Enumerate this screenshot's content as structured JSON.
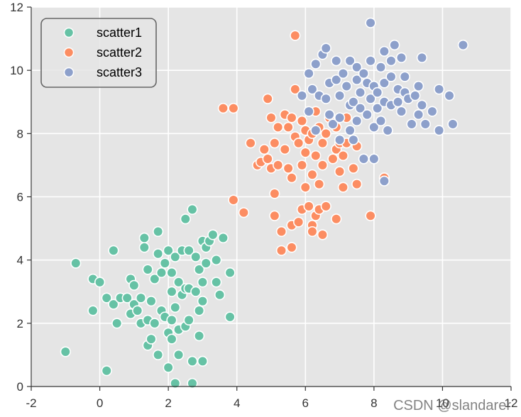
{
  "chart_data": {
    "type": "scatter",
    "title": "",
    "xlabel": "",
    "ylabel": "",
    "xlim": [
      -2,
      12
    ],
    "ylim": [
      0,
      12
    ],
    "xticks": [
      -2,
      0,
      2,
      4,
      6,
      8,
      10,
      12
    ],
    "yticks": [
      0,
      2,
      4,
      6,
      8,
      10,
      12
    ],
    "grid": true,
    "legend_position": "top-left",
    "series": [
      {
        "name": "scatter1",
        "color": "#66c2a5",
        "points": [
          [
            -1.0,
            1.1
          ],
          [
            0.2,
            0.5
          ],
          [
            -0.7,
            3.9
          ],
          [
            -0.2,
            3.4
          ],
          [
            0.4,
            4.3
          ],
          [
            -0.2,
            2.4
          ],
          [
            0.0,
            3.3
          ],
          [
            0.2,
            2.8
          ],
          [
            0.4,
            2.6
          ],
          [
            0.5,
            2.0
          ],
          [
            0.6,
            2.8
          ],
          [
            0.8,
            2.8
          ],
          [
            0.9,
            3.4
          ],
          [
            0.9,
            2.3
          ],
          [
            1.0,
            3.2
          ],
          [
            1.0,
            2.6
          ],
          [
            1.1,
            2.4
          ],
          [
            1.2,
            2.8
          ],
          [
            1.2,
            2.0
          ],
          [
            1.3,
            4.4
          ],
          [
            1.3,
            4.7
          ],
          [
            1.4,
            3.7
          ],
          [
            1.4,
            2.1
          ],
          [
            1.4,
            1.3
          ],
          [
            1.5,
            1.5
          ],
          [
            1.5,
            2.7
          ],
          [
            1.6,
            3.4
          ],
          [
            1.6,
            2.0
          ],
          [
            1.7,
            4.9
          ],
          [
            1.7,
            1.0
          ],
          [
            1.7,
            4.2
          ],
          [
            1.8,
            3.6
          ],
          [
            1.8,
            2.4
          ],
          [
            1.9,
            2.2
          ],
          [
            1.9,
            3.9
          ],
          [
            2.0,
            4.3
          ],
          [
            2.0,
            1.7
          ],
          [
            2.0,
            0.6
          ],
          [
            2.1,
            1.5
          ],
          [
            2.1,
            2.1
          ],
          [
            2.1,
            3.6
          ],
          [
            2.1,
            3.0
          ],
          [
            2.2,
            4.1
          ],
          [
            2.2,
            2.5
          ],
          [
            2.2,
            0.1
          ],
          [
            2.3,
            3.3
          ],
          [
            2.3,
            1.8
          ],
          [
            2.3,
            1.0
          ],
          [
            2.4,
            2.9
          ],
          [
            2.4,
            4.3
          ],
          [
            2.5,
            3.1
          ],
          [
            2.5,
            5.3
          ],
          [
            2.5,
            1.9
          ],
          [
            2.6,
            4.3
          ],
          [
            2.6,
            3.1
          ],
          [
            2.6,
            2.1
          ],
          [
            2.7,
            5.6
          ],
          [
            2.7,
            0.8
          ],
          [
            2.7,
            0.1
          ],
          [
            2.8,
            3.0
          ],
          [
            2.8,
            4.1
          ],
          [
            2.9,
            2.4
          ],
          [
            2.9,
            3.7
          ],
          [
            2.9,
            1.6
          ],
          [
            3.0,
            3.3
          ],
          [
            3.0,
            2.7
          ],
          [
            3.0,
            4.6
          ],
          [
            3.0,
            0.8
          ],
          [
            3.1,
            3.9
          ],
          [
            3.1,
            4.4
          ],
          [
            3.2,
            4.6
          ],
          [
            3.3,
            4.8
          ],
          [
            3.4,
            4.0
          ],
          [
            3.4,
            3.3
          ],
          [
            3.5,
            2.9
          ],
          [
            3.6,
            4.7
          ],
          [
            3.8,
            3.6
          ],
          [
            3.8,
            2.2
          ]
        ]
      },
      {
        "name": "scatter2",
        "color": "#fc8d62",
        "points": [
          [
            3.6,
            8.8
          ],
          [
            3.9,
            8.8
          ],
          [
            3.9,
            5.9
          ],
          [
            4.2,
            5.5
          ],
          [
            4.4,
            7.7
          ],
          [
            4.6,
            7.0
          ],
          [
            4.7,
            7.1
          ],
          [
            4.8,
            7.5
          ],
          [
            4.9,
            7.2
          ],
          [
            4.9,
            9.1
          ],
          [
            5.0,
            6.9
          ],
          [
            5.0,
            8.5
          ],
          [
            5.1,
            6.1
          ],
          [
            5.1,
            5.4
          ],
          [
            5.1,
            7.7
          ],
          [
            5.2,
            8.2
          ],
          [
            5.2,
            7.0
          ],
          [
            5.3,
            4.9
          ],
          [
            5.3,
            4.3
          ],
          [
            5.4,
            8.6
          ],
          [
            5.4,
            7.5
          ],
          [
            5.5,
            6.9
          ],
          [
            5.5,
            8.2
          ],
          [
            5.6,
            4.4
          ],
          [
            5.6,
            6.6
          ],
          [
            5.6,
            5.1
          ],
          [
            5.6,
            8.5
          ],
          [
            5.7,
            7.9
          ],
          [
            5.7,
            9.4
          ],
          [
            5.7,
            11.1
          ],
          [
            5.8,
            5.2
          ],
          [
            5.8,
            7.7
          ],
          [
            5.9,
            7.0
          ],
          [
            5.9,
            8.4
          ],
          [
            5.9,
            5.6
          ],
          [
            6.0,
            8.1
          ],
          [
            6.0,
            7.4
          ],
          [
            6.0,
            6.3
          ],
          [
            6.1,
            7.8
          ],
          [
            6.1,
            5.7
          ],
          [
            6.2,
            8.0
          ],
          [
            6.2,
            6.7
          ],
          [
            6.2,
            5.1
          ],
          [
            6.2,
            4.9
          ],
          [
            6.3,
            7.3
          ],
          [
            6.3,
            5.4
          ],
          [
            6.3,
            8.7
          ],
          [
            6.4,
            6.4
          ],
          [
            6.4,
            8.2
          ],
          [
            6.4,
            5.6
          ],
          [
            6.5,
            7.7
          ],
          [
            6.5,
            7.0
          ],
          [
            6.5,
            4.8
          ],
          [
            6.6,
            5.7
          ],
          [
            6.6,
            8.0
          ],
          [
            6.7,
            8.5
          ],
          [
            6.8,
            7.2
          ],
          [
            6.9,
            5.3
          ],
          [
            6.9,
            7.5
          ],
          [
            6.9,
            8.2
          ],
          [
            7.0,
            7.7
          ],
          [
            7.0,
            6.8
          ],
          [
            7.1,
            7.3
          ],
          [
            7.1,
            6.3
          ],
          [
            7.2,
            7.7
          ],
          [
            7.2,
            8.5
          ],
          [
            7.4,
            6.9
          ],
          [
            7.5,
            7.6
          ],
          [
            7.5,
            6.4
          ],
          [
            7.9,
            5.4
          ],
          [
            8.3,
            6.6
          ]
        ]
      },
      {
        "name": "scatter3",
        "color": "#8da0cb",
        "points": [
          [
            5.9,
            9.2
          ],
          [
            6.1,
            8.7
          ],
          [
            6.1,
            9.9
          ],
          [
            6.2,
            9.4
          ],
          [
            6.3,
            10.2
          ],
          [
            6.3,
            8.1
          ],
          [
            6.4,
            9.2
          ],
          [
            6.5,
            10.5
          ],
          [
            6.6,
            10.7
          ],
          [
            6.6,
            9.1
          ],
          [
            6.7,
            8.6
          ],
          [
            6.7,
            9.6
          ],
          [
            6.8,
            8.3
          ],
          [
            6.9,
            9.7
          ],
          [
            6.9,
            10.3
          ],
          [
            7.0,
            9.2
          ],
          [
            7.0,
            8.5
          ],
          [
            7.0,
            7.8
          ],
          [
            7.1,
            9.9
          ],
          [
            7.2,
            9.5
          ],
          [
            7.3,
            8.1
          ],
          [
            7.3,
            8.9
          ],
          [
            7.3,
            10.3
          ],
          [
            7.4,
            9.0
          ],
          [
            7.4,
            7.8
          ],
          [
            7.5,
            9.7
          ],
          [
            7.5,
            10.1
          ],
          [
            7.5,
            8.4
          ],
          [
            7.6,
            9.3
          ],
          [
            7.6,
            8.8
          ],
          [
            7.7,
            9.9
          ],
          [
            7.7,
            7.2
          ],
          [
            7.8,
            9.6
          ],
          [
            7.8,
            8.6
          ],
          [
            7.9,
            9.1
          ],
          [
            7.9,
            10.3
          ],
          [
            7.9,
            11.5
          ],
          [
            8.0,
            8.2
          ],
          [
            8.0,
            9.5
          ],
          [
            8.0,
            7.2
          ],
          [
            8.1,
            9.3
          ],
          [
            8.1,
            8.8
          ],
          [
            8.2,
            10.1
          ],
          [
            8.2,
            8.4
          ],
          [
            8.3,
            9.6
          ],
          [
            8.3,
            10.6
          ],
          [
            8.3,
            9.0
          ],
          [
            8.4,
            8.1
          ],
          [
            8.5,
            8.9
          ],
          [
            8.5,
            9.8
          ],
          [
            8.5,
            10.3
          ],
          [
            8.6,
            10.8
          ],
          [
            8.7,
            9.0
          ],
          [
            8.7,
            9.4
          ],
          [
            8.8,
            8.7
          ],
          [
            8.8,
            10.4
          ],
          [
            8.9,
            9.3
          ],
          [
            8.9,
            9.8
          ],
          [
            9.0,
            9.1
          ],
          [
            9.1,
            8.3
          ],
          [
            9.2,
            9.2
          ],
          [
            9.3,
            8.6
          ],
          [
            9.3,
            9.5
          ],
          [
            9.4,
            8.9
          ],
          [
            9.4,
            10.4
          ],
          [
            9.5,
            8.3
          ],
          [
            9.7,
            8.7
          ],
          [
            9.9,
            8.1
          ],
          [
            9.9,
            9.4
          ],
          [
            10.2,
            9.2
          ],
          [
            10.3,
            8.3
          ],
          [
            10.6,
            10.8
          ],
          [
            8.3,
            6.5
          ]
        ]
      }
    ]
  },
  "watermark": "CSDN @slandarer"
}
